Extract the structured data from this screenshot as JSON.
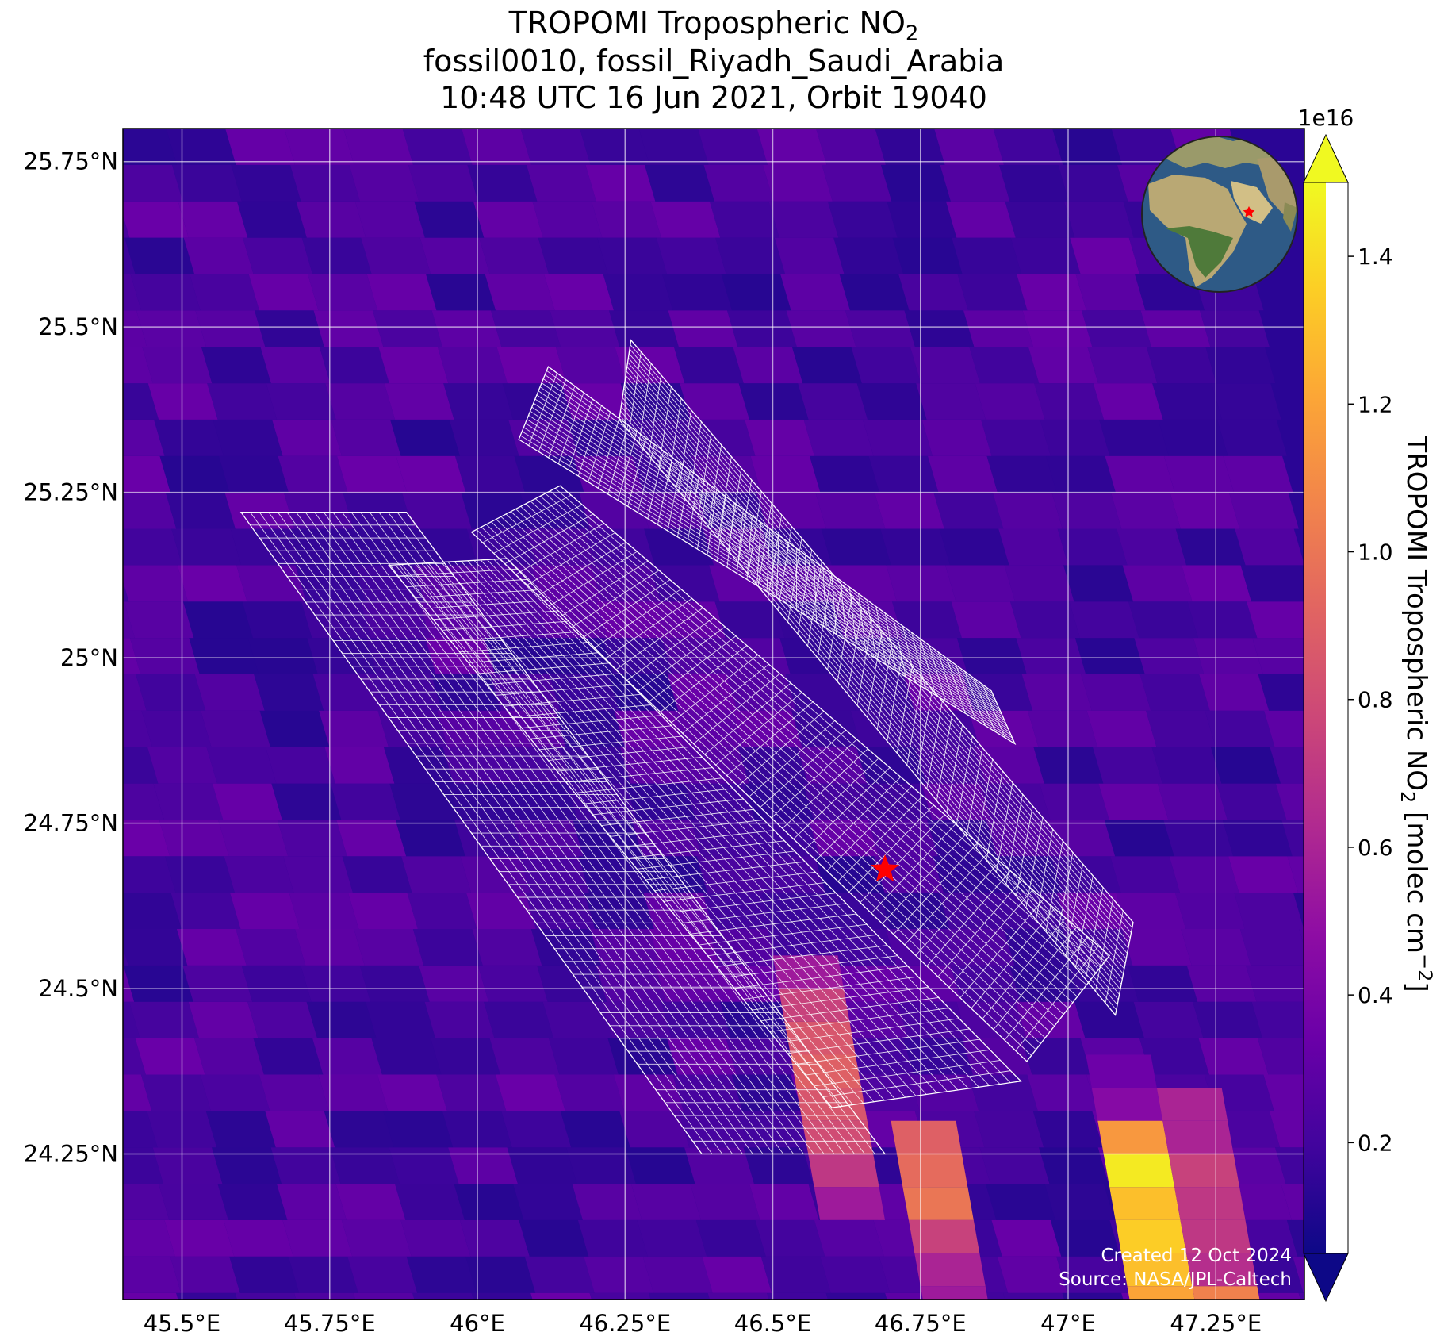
{
  "title": {
    "line1": "TROPOMI Tropospheric NO",
    "line1_sub": "2",
    "line2": "fossil0010, fossil_Riyadh_Saudi_Arabia",
    "line3": "10:48 UTC 16 Jun 2021, Orbit 19040"
  },
  "credits": {
    "created": "Created 12 Oct 2024",
    "source": "Source: NASA/JPL-Caltech"
  },
  "chart_data": {
    "type": "heatmap",
    "projection": "map",
    "xlim": [
      45.4,
      47.4
    ],
    "ylim": [
      24.03,
      25.8
    ],
    "x_ticks": [
      45.5,
      45.75,
      46.0,
      46.25,
      46.5,
      46.75,
      47.0,
      47.25
    ],
    "x_tick_labels": [
      "45.5°E",
      "45.75°E",
      "46°E",
      "46.25°E",
      "46.5°E",
      "46.75°E",
      "47°E",
      "47.25°E"
    ],
    "y_ticks": [
      24.25,
      24.5,
      24.75,
      25.0,
      25.25,
      25.5,
      25.75
    ],
    "y_tick_labels": [
      "24.25°N",
      "24.5°N",
      "24.75°N",
      "25°N",
      "25.25°N",
      "25.5°N",
      "25.75°N"
    ],
    "grid": true,
    "target": {
      "lon": 46.69,
      "lat": 24.68,
      "marker": "star",
      "color": "#ff0000"
    },
    "colorbar": {
      "label": "TROPOMI Tropospheric NO",
      "label_sub": "2",
      "label_unit": "[molec cm",
      "label_unit_sup": "−2",
      "label_end": "]",
      "scale_text": "1e16",
      "vmin": 0.05,
      "vmax": 1.5,
      "extend": "both",
      "colormap": "plasma",
      "ticks": [
        0.2,
        0.4,
        0.6,
        0.8,
        1.0,
        1.2,
        1.4
      ],
      "tick_labels": [
        "0.2",
        "0.4",
        "0.6",
        "0.8",
        "1.0",
        "1.2",
        "1.4"
      ]
    },
    "high_value_strips": [
      {
        "lon0": 47.03,
        "lat0": 24.4,
        "values": [
          0.35,
          0.45,
          1.15,
          1.45,
          1.3,
          1.35,
          1.3,
          1.2
        ]
      },
      {
        "lon0": 47.15,
        "lat0": 24.35,
        "values": [
          0.6,
          0.6,
          0.75,
          0.7,
          0.7,
          0.65,
          1.05,
          1.35,
          1.35
        ]
      },
      {
        "lon0": 46.7,
        "lat0": 24.3,
        "values": [
          0.9,
          0.95,
          1.0,
          0.75,
          0.6,
          0.55
        ]
      },
      {
        "lon0": 46.5,
        "lat0": 24.55,
        "values": [
          0.55,
          0.75,
          0.85,
          0.9,
          0.85,
          0.8,
          0.7,
          0.55
        ]
      }
    ],
    "overlays": [
      {
        "name": "oco-3-snapshot-footprints",
        "color": "#ffffff",
        "count": 5
      }
    ],
    "inset": {
      "type": "globe",
      "marker": "star",
      "marker_color": "#ff0000"
    }
  }
}
